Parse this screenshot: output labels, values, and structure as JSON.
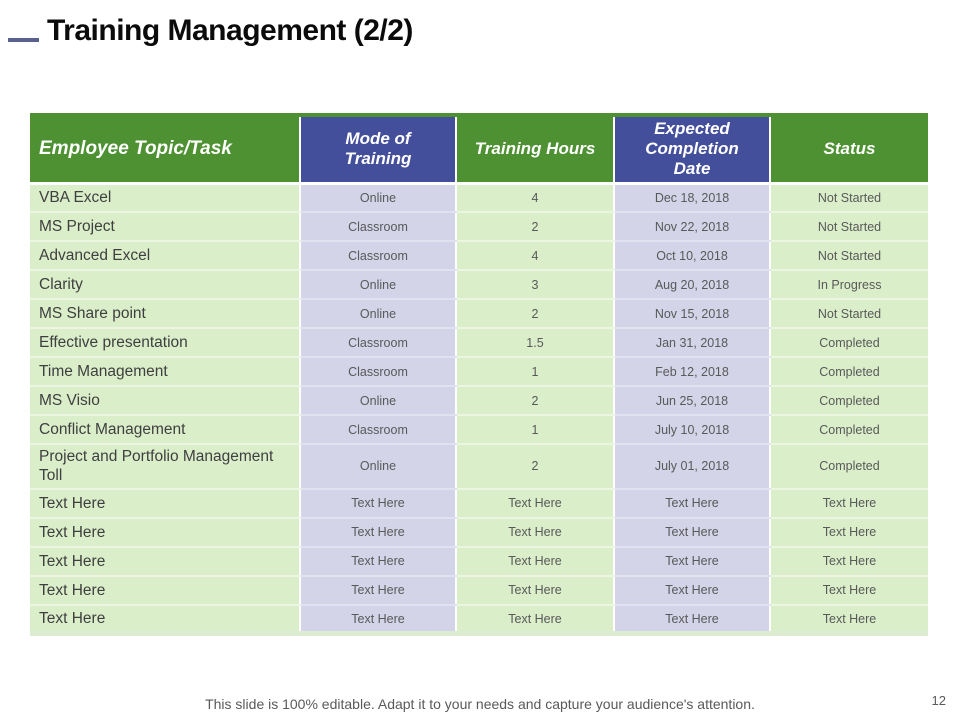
{
  "slide": {
    "title": "Training Management (2/2)",
    "footer": "This slide is 100% editable. Adapt it to your needs and capture your audience's attention.",
    "page_number": "12"
  },
  "colors": {
    "header_green": "#4e9132",
    "header_navy": "#444f9c",
    "cell_green": "#daeeca",
    "cell_lavender": "#d3d4e8",
    "separator_green": "#ecf5e2",
    "separator_lavender": "#e1e2f0",
    "table_bottom_edge": "#dcecd2",
    "title_dash": "#59618f",
    "body_text": "#595959",
    "topic_text": "#3f3f3f"
  },
  "table": {
    "columns": [
      {
        "label": "Employee Topic/Task",
        "theme": "green"
      },
      {
        "label": "Mode of Training",
        "theme": "navy"
      },
      {
        "label": "Training Hours",
        "theme": "green"
      },
      {
        "label": "Expected Completion Date",
        "theme": "navy"
      },
      {
        "label": "Status",
        "theme": "green"
      }
    ],
    "rows": [
      [
        "VBA Excel",
        "Online",
        "4",
        "Dec 18, 2018",
        "Not Started"
      ],
      [
        "MS Project",
        "Classroom",
        "2",
        "Nov 22, 2018",
        "Not Started"
      ],
      [
        "Advanced Excel",
        "Classroom",
        "4",
        "Oct 10, 2018",
        "Not Started"
      ],
      [
        "Clarity",
        "Online",
        "3",
        "Aug 20, 2018",
        "In Progress"
      ],
      [
        "MS Share point",
        "Online",
        "2",
        "Nov 15, 2018",
        "Not Started"
      ],
      [
        "Effective presentation",
        "Classroom",
        "1.5",
        "Jan 31, 2018",
        "Completed"
      ],
      [
        "Time Management",
        "Classroom",
        "1",
        "Feb 12, 2018",
        "Completed"
      ],
      [
        "MS Visio",
        "Online",
        "2",
        "Jun 25, 2018",
        "Completed"
      ],
      [
        "Conflict Management",
        "Classroom",
        "1",
        "July 10, 2018",
        "Completed"
      ],
      [
        "Project and Portfolio Management Toll",
        "Online",
        "2",
        "July 01, 2018",
        "Completed"
      ],
      [
        "Text Here",
        "Text Here",
        "Text Here",
        "Text Here",
        "Text Here"
      ],
      [
        "Text Here",
        "Text Here",
        "Text Here",
        "Text Here",
        "Text Here"
      ],
      [
        "Text Here",
        "Text Here",
        "Text Here",
        "Text Here",
        "Text Here"
      ],
      [
        "Text Here",
        "Text Here",
        "Text Here",
        "Text Here",
        "Text Here"
      ],
      [
        "Text Here",
        "Text Here",
        "Text Here",
        "Text Here",
        "Text Here"
      ]
    ]
  }
}
